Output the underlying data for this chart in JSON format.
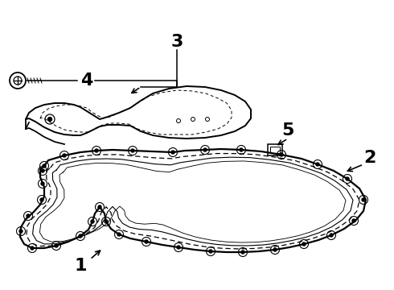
{
  "background_color": "#ffffff",
  "line_color": "#000000",
  "fig_width": 4.9,
  "fig_height": 3.6,
  "dpi": 100
}
